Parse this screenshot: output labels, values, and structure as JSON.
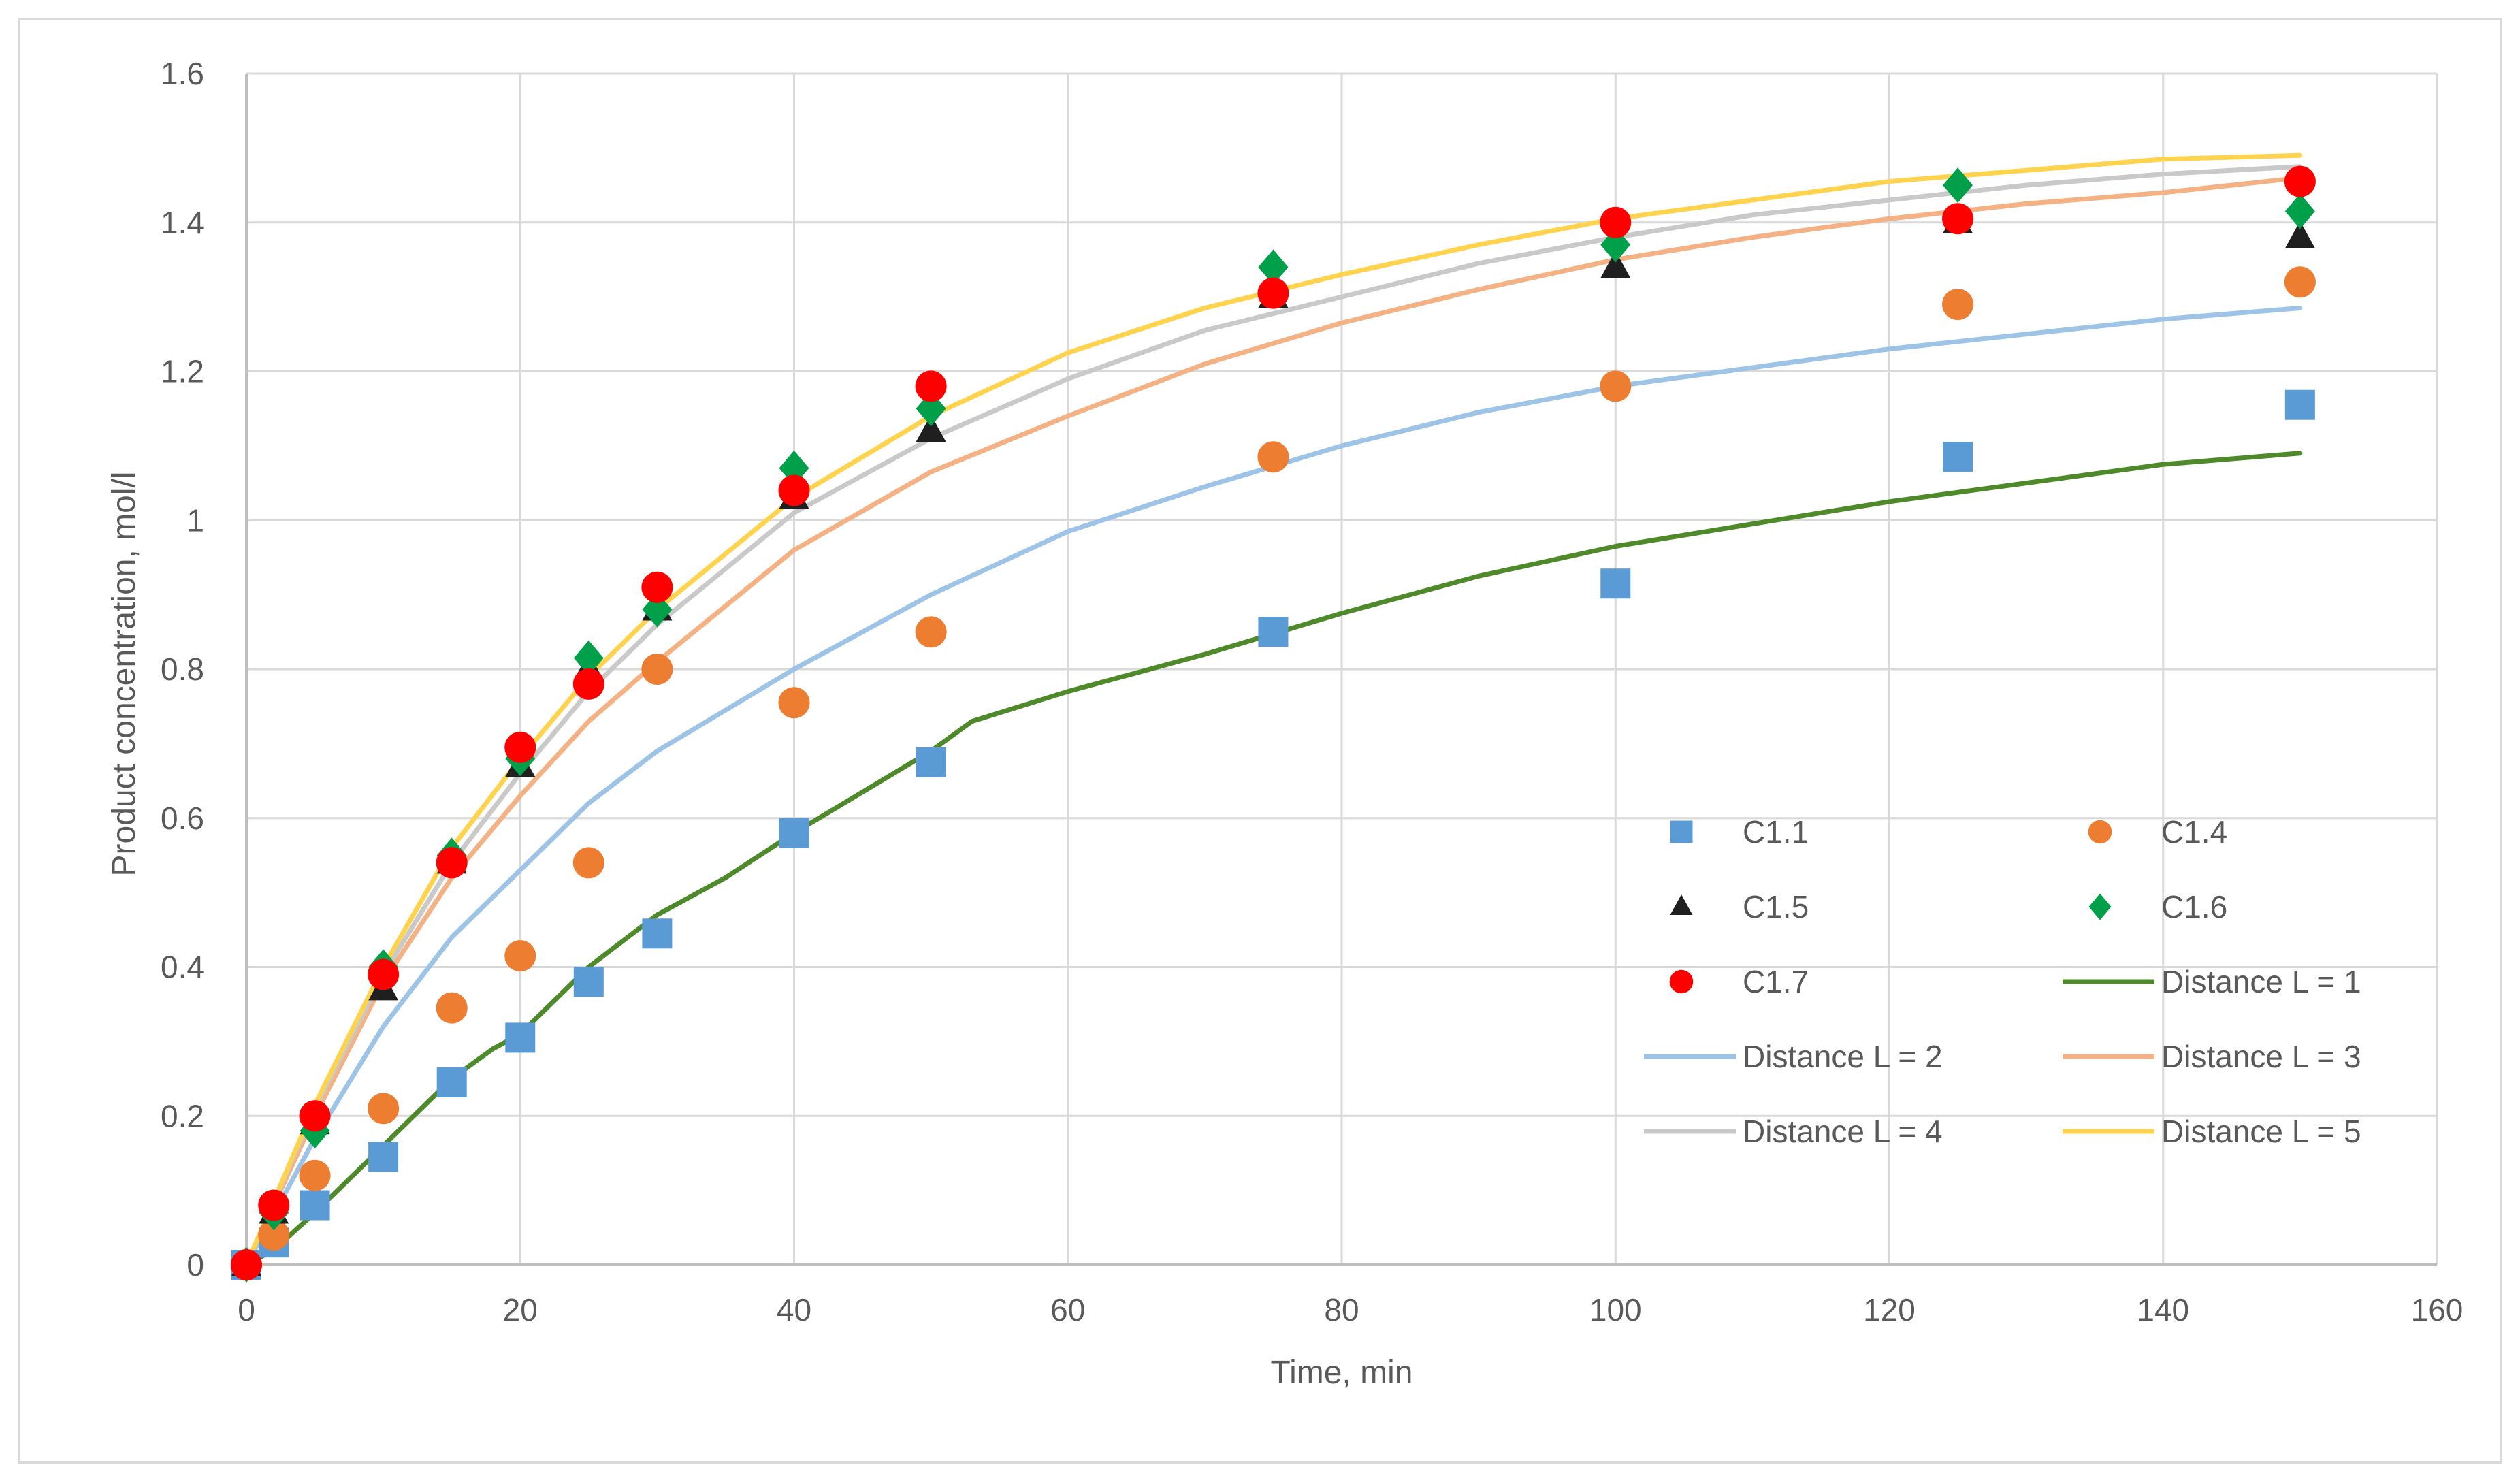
{
  "chart_data": {
    "type": "scatter",
    "title": "",
    "xlabel": "Time, min",
    "ylabel": "Product concentration, mol/l",
    "xlim": [
      0,
      160
    ],
    "ylim": [
      0,
      1.6
    ],
    "xticks": [
      0,
      20,
      40,
      60,
      80,
      100,
      120,
      140,
      160
    ],
    "xtick_labels": [
      "0",
      "20",
      "40",
      "60",
      "80",
      "100",
      "120",
      "140",
      "160"
    ],
    "yticks": [
      0,
      0.2,
      0.4,
      0.6,
      0.8,
      1.0,
      1.2,
      1.4,
      1.6
    ],
    "ytick_labels": [
      "0",
      "0.2",
      "0.4",
      "0.6",
      "0.8",
      "1",
      "1.2",
      "1.4",
      "1.6"
    ],
    "grid": true,
    "legend_position": "lower-right inside plot",
    "series": [
      {
        "name": "C1.1",
        "kind": "marker",
        "marker": "square",
        "color": "#5b9bd5",
        "x": [
          0,
          2,
          5,
          10,
          15,
          20,
          25,
          30,
          40,
          50,
          75,
          100,
          125,
          150
        ],
        "y": [
          0.0,
          0.03,
          0.08,
          0.145,
          0.245,
          0.305,
          0.38,
          0.445,
          0.58,
          0.675,
          0.85,
          0.915,
          1.085,
          1.155
        ]
      },
      {
        "name": "C1.4",
        "kind": "marker",
        "marker": "circle",
        "color": "#ed7d31",
        "x": [
          0,
          2,
          5,
          10,
          15,
          20,
          25,
          30,
          40,
          50,
          75,
          100,
          125,
          150
        ],
        "y": [
          0.0,
          0.04,
          0.12,
          0.21,
          0.345,
          0.415,
          0.54,
          0.8,
          0.755,
          0.85,
          1.085,
          1.18,
          1.29,
          1.32
        ]
      },
      {
        "name": "C1.5",
        "kind": "marker",
        "marker": "triangle",
        "color": "#1f1f1f",
        "x": [
          0,
          2,
          5,
          10,
          15,
          20,
          25,
          30,
          40,
          50,
          75,
          100,
          125,
          150
        ],
        "y": [
          0.0,
          0.07,
          0.19,
          0.37,
          0.54,
          0.67,
          0.8,
          0.88,
          1.03,
          1.12,
          1.3,
          1.34,
          1.4,
          1.38
        ]
      },
      {
        "name": "C1.6",
        "kind": "marker",
        "marker": "diamond",
        "color": "#00a04a",
        "x": [
          0,
          2,
          5,
          10,
          15,
          20,
          25,
          30,
          40,
          50,
          75,
          100,
          125,
          150
        ],
        "y": [
          0.0,
          0.07,
          0.18,
          0.4,
          0.55,
          0.68,
          0.815,
          0.88,
          1.07,
          1.15,
          1.34,
          1.37,
          1.45,
          1.415
        ]
      },
      {
        "name": "C1.7",
        "kind": "marker",
        "marker": "circle",
        "color": "#ff0000",
        "x": [
          0,
          2,
          5,
          10,
          15,
          20,
          25,
          30,
          40,
          50,
          75,
          100,
          125,
          150
        ],
        "y": [
          0.0,
          0.08,
          0.2,
          0.39,
          0.54,
          0.695,
          0.78,
          0.91,
          1.04,
          1.18,
          1.305,
          1.4,
          1.405,
          1.455
        ]
      },
      {
        "name": "Distance L = 1",
        "kind": "line",
        "color": "#4e8a2a",
        "x": [
          0,
          2,
          5,
          10,
          15,
          18,
          20,
          25,
          30,
          35,
          40,
          45,
          50,
          53,
          60,
          70,
          80,
          90,
          100,
          110,
          120,
          130,
          140,
          150
        ],
        "y": [
          0.0,
          0.02,
          0.07,
          0.16,
          0.25,
          0.29,
          0.31,
          0.4,
          0.47,
          0.52,
          0.58,
          0.635,
          0.69,
          0.73,
          0.77,
          0.82,
          0.875,
          0.925,
          0.965,
          0.995,
          1.025,
          1.05,
          1.075,
          1.09
        ]
      },
      {
        "name": "Distance L = 2",
        "kind": "line",
        "color": "#9dc3e6",
        "x": [
          0,
          5,
          10,
          15,
          20,
          25,
          30,
          40,
          50,
          60,
          70,
          80,
          90,
          100,
          110,
          120,
          130,
          140,
          150
        ],
        "y": [
          0.0,
          0.17,
          0.32,
          0.44,
          0.53,
          0.62,
          0.69,
          0.8,
          0.9,
          0.985,
          1.045,
          1.1,
          1.145,
          1.18,
          1.205,
          1.23,
          1.25,
          1.27,
          1.285
        ]
      },
      {
        "name": "Distance L = 3",
        "kind": "line",
        "color": "#f4b183",
        "x": [
          0,
          5,
          10,
          15,
          20,
          25,
          30,
          40,
          50,
          60,
          70,
          80,
          90,
          100,
          110,
          120,
          130,
          140,
          150
        ],
        "y": [
          0.0,
          0.2,
          0.38,
          0.52,
          0.63,
          0.73,
          0.81,
          0.96,
          1.065,
          1.14,
          1.21,
          1.265,
          1.31,
          1.35,
          1.38,
          1.405,
          1.425,
          1.44,
          1.46
        ]
      },
      {
        "name": "Distance L = 4",
        "kind": "line",
        "color": "#c9c9c9",
        "x": [
          0,
          5,
          10,
          15,
          20,
          25,
          30,
          40,
          50,
          60,
          70,
          80,
          90,
          100,
          110,
          120,
          130,
          140,
          150
        ],
        "y": [
          0.0,
          0.21,
          0.39,
          0.54,
          0.66,
          0.77,
          0.86,
          1.01,
          1.11,
          1.19,
          1.255,
          1.3,
          1.345,
          1.38,
          1.41,
          1.43,
          1.45,
          1.465,
          1.475
        ]
      },
      {
        "name": "Distance L = 5",
        "kind": "line",
        "color": "#ffd34e",
        "x": [
          0,
          5,
          10,
          15,
          20,
          25,
          30,
          40,
          50,
          60,
          70,
          80,
          90,
          100,
          110,
          120,
          130,
          140,
          150
        ],
        "y": [
          0.0,
          0.215,
          0.4,
          0.56,
          0.68,
          0.79,
          0.88,
          1.03,
          1.14,
          1.225,
          1.285,
          1.33,
          1.37,
          1.405,
          1.43,
          1.455,
          1.47,
          1.485,
          1.49
        ]
      }
    ]
  }
}
